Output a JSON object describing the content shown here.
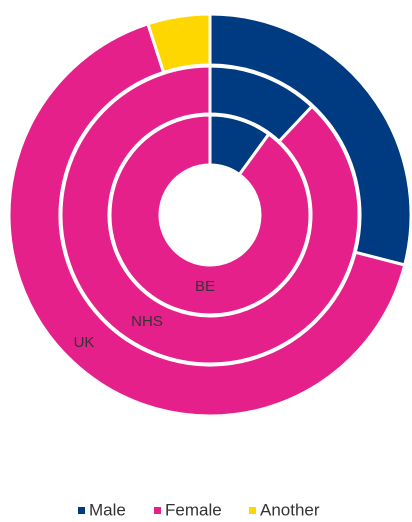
{
  "chart_data": {
    "type": "multi-donut",
    "categories": [
      "UK",
      "NHS",
      "BE"
    ],
    "series": [
      {
        "name": "Male",
        "color": "#003a80",
        "values": [
          29,
          12,
          10
        ]
      },
      {
        "name": "Female",
        "color": "#e6208a",
        "values": [
          66,
          88,
          90
        ]
      },
      {
        "name": "Another",
        "color": "#ffd700",
        "values": [
          5,
          0,
          0
        ]
      }
    ],
    "legend": "bottom"
  }
}
